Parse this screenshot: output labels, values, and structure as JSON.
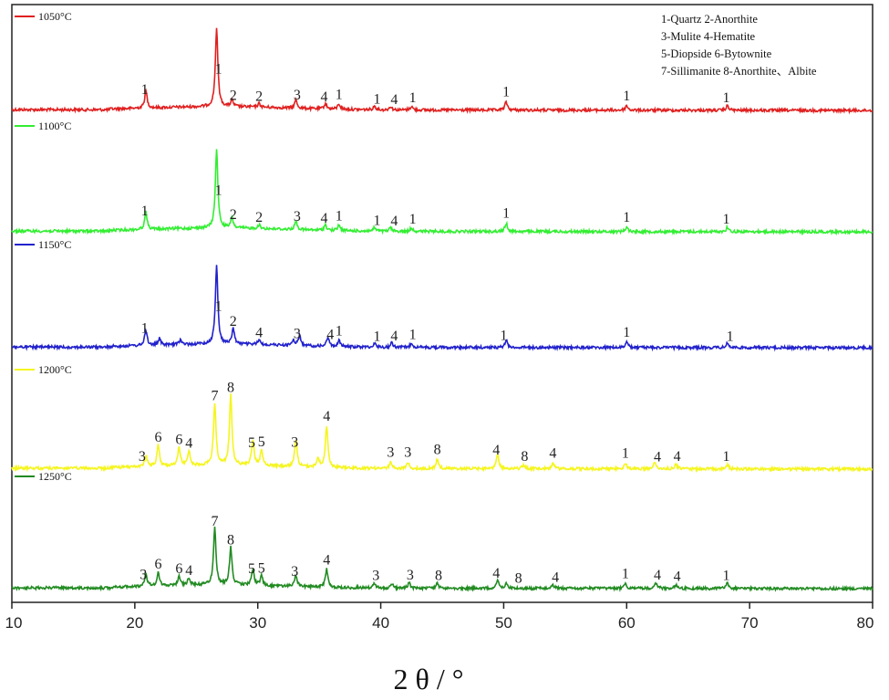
{
  "chart_data": {
    "type": "line",
    "title": "",
    "xlabel": "2 θ / °",
    "ylabel": "",
    "xlim": [
      10,
      80
    ],
    "xticks": [
      "10",
      "20",
      "30",
      "40",
      "50",
      "60",
      "70",
      "80"
    ],
    "grid": false,
    "phase_legend": [
      "1-Quartz 2-Anorthite",
      "3-Mulite 4-Hematite",
      "5-Diopside 6-Bytownite",
      "7-Sillimanite 8-Anorthite、Albite"
    ],
    "series": [
      {
        "name": "1050°C",
        "color": "#e02020",
        "baseline": 0.0,
        "peaks": [
          [
            20.9,
            0.19
          ],
          [
            26.65,
            0.86
          ],
          [
            27.9,
            0.07
          ],
          [
            30.1,
            0.04
          ],
          [
            33.1,
            0.09
          ],
          [
            35.5,
            0.06
          ],
          [
            36.6,
            0.06
          ],
          [
            39.5,
            0.04
          ],
          [
            40.8,
            0.04
          ],
          [
            42.5,
            0.04
          ],
          [
            50.2,
            0.09
          ],
          [
            60.0,
            0.05
          ],
          [
            68.2,
            0.05
          ]
        ],
        "labels": [
          [
            20.8,
            "1"
          ],
          [
            26.8,
            "1"
          ],
          [
            28.0,
            "2"
          ],
          [
            30.1,
            "2"
          ],
          [
            33.2,
            "3"
          ],
          [
            35.4,
            "4"
          ],
          [
            36.6,
            "1"
          ],
          [
            39.7,
            "1"
          ],
          [
            41.1,
            "4"
          ],
          [
            42.6,
            "1"
          ],
          [
            50.2,
            "1"
          ],
          [
            60.0,
            "1"
          ],
          [
            68.1,
            "1"
          ]
        ]
      },
      {
        "name": "1100°C",
        "color": "#33ee33",
        "baseline": 0.0,
        "peaks": [
          [
            20.9,
            0.19
          ],
          [
            26.65,
            0.86
          ],
          [
            27.9,
            0.11
          ],
          [
            30.1,
            0.04
          ],
          [
            33.1,
            0.09
          ],
          [
            35.5,
            0.06
          ],
          [
            36.6,
            0.06
          ],
          [
            39.5,
            0.04
          ],
          [
            40.8,
            0.04
          ],
          [
            42.5,
            0.04
          ],
          [
            50.2,
            0.09
          ],
          [
            60.0,
            0.05
          ],
          [
            68.2,
            0.05
          ]
        ],
        "labels": [
          [
            20.8,
            "1"
          ],
          [
            26.8,
            "1"
          ],
          [
            28.0,
            "2"
          ],
          [
            30.1,
            "2"
          ],
          [
            33.2,
            "3"
          ],
          [
            35.4,
            "4"
          ],
          [
            36.6,
            "1"
          ],
          [
            39.7,
            "1"
          ],
          [
            41.1,
            "4"
          ],
          [
            42.6,
            "1"
          ],
          [
            50.2,
            "1"
          ],
          [
            60.0,
            "1"
          ],
          [
            68.1,
            "1"
          ]
        ]
      },
      {
        "name": "1150°C",
        "color": "#2222cc",
        "baseline": 0.0,
        "peaks": [
          [
            20.9,
            0.17
          ],
          [
            22.0,
            0.07
          ],
          [
            23.7,
            0.05
          ],
          [
            26.65,
            0.86
          ],
          [
            28.0,
            0.17
          ],
          [
            30.1,
            0.05
          ],
          [
            32.9,
            0.06
          ],
          [
            33.4,
            0.11
          ],
          [
            35.7,
            0.1
          ],
          [
            36.6,
            0.07
          ],
          [
            39.5,
            0.04
          ],
          [
            40.9,
            0.05
          ],
          [
            42.5,
            0.05
          ],
          [
            50.2,
            0.08
          ],
          [
            60.0,
            0.06
          ],
          [
            68.2,
            0.05
          ]
        ],
        "labels": [
          [
            20.8,
            "1"
          ],
          [
            26.8,
            "1"
          ],
          [
            28.0,
            "2"
          ],
          [
            30.1,
            "4"
          ],
          [
            33.2,
            "3"
          ],
          [
            35.9,
            "4"
          ],
          [
            36.6,
            "1"
          ],
          [
            39.7,
            "1"
          ],
          [
            41.1,
            "4"
          ],
          [
            42.6,
            "1"
          ],
          [
            50.0,
            "1"
          ],
          [
            60.0,
            "1"
          ],
          [
            68.4,
            "1"
          ]
        ]
      },
      {
        "name": "1200°C",
        "color": "#f5f520",
        "baseline": 0.0,
        "peaks": [
          [
            20.9,
            0.12
          ],
          [
            21.9,
            0.23
          ],
          [
            23.6,
            0.2
          ],
          [
            24.4,
            0.16
          ],
          [
            26.5,
            0.68
          ],
          [
            27.8,
            0.77
          ],
          [
            29.6,
            0.28
          ],
          [
            30.3,
            0.17
          ],
          [
            33.1,
            0.3
          ],
          [
            34.9,
            0.1
          ],
          [
            35.6,
            0.46
          ],
          [
            40.8,
            0.07
          ],
          [
            42.2,
            0.07
          ],
          [
            44.6,
            0.1
          ],
          [
            49.5,
            0.16
          ],
          [
            51.6,
            0.04
          ],
          [
            54.0,
            0.06
          ],
          [
            59.9,
            0.06
          ],
          [
            62.3,
            0.08
          ],
          [
            64.0,
            0.05
          ],
          [
            68.2,
            0.05
          ]
        ],
        "labels": [
          [
            20.6,
            "3"
          ],
          [
            21.9,
            "6"
          ],
          [
            23.6,
            "6"
          ],
          [
            24.4,
            "4"
          ],
          [
            26.5,
            "7"
          ],
          [
            27.8,
            "8"
          ],
          [
            29.5,
            "5"
          ],
          [
            30.3,
            "5"
          ],
          [
            33.0,
            "3"
          ],
          [
            35.6,
            "4"
          ],
          [
            40.8,
            "3"
          ],
          [
            42.2,
            "3"
          ],
          [
            44.6,
            "8"
          ],
          [
            49.4,
            "4"
          ],
          [
            51.7,
            "8"
          ],
          [
            54.0,
            "4"
          ],
          [
            59.9,
            "1"
          ],
          [
            62.5,
            "4"
          ],
          [
            64.1,
            "4"
          ],
          [
            68.1,
            "1"
          ]
        ]
      },
      {
        "name": "1250°C",
        "color": "#228b22",
        "baseline": 0.0,
        "peaks": [
          [
            20.9,
            0.14
          ],
          [
            21.9,
            0.15
          ],
          [
            23.6,
            0.1
          ],
          [
            24.4,
            0.08
          ],
          [
            26.5,
            0.62
          ],
          [
            27.8,
            0.41
          ],
          [
            29.6,
            0.17
          ],
          [
            30.3,
            0.1
          ],
          [
            33.1,
            0.12
          ],
          [
            35.6,
            0.2
          ],
          [
            39.5,
            0.05
          ],
          [
            40.9,
            0.05
          ],
          [
            42.3,
            0.06
          ],
          [
            44.6,
            0.05
          ],
          [
            49.5,
            0.09
          ],
          [
            50.2,
            0.05
          ],
          [
            54.0,
            0.04
          ],
          [
            59.9,
            0.05
          ],
          [
            62.4,
            0.06
          ],
          [
            64.0,
            0.04
          ],
          [
            68.2,
            0.06
          ]
        ],
        "labels": [
          [
            20.7,
            "3"
          ],
          [
            21.9,
            "6"
          ],
          [
            23.6,
            "6"
          ],
          [
            24.4,
            "4"
          ],
          [
            26.5,
            "7"
          ],
          [
            27.8,
            "8"
          ],
          [
            29.5,
            "5"
          ],
          [
            30.3,
            "5"
          ],
          [
            33.0,
            "3"
          ],
          [
            35.6,
            "4"
          ],
          [
            39.6,
            "3"
          ],
          [
            42.4,
            "3"
          ],
          [
            44.7,
            "8"
          ],
          [
            49.4,
            "4"
          ],
          [
            51.2,
            "8"
          ],
          [
            54.2,
            "4"
          ],
          [
            59.9,
            "1"
          ],
          [
            62.5,
            "4"
          ],
          [
            64.1,
            "4"
          ],
          [
            68.1,
            "1"
          ]
        ]
      }
    ]
  }
}
